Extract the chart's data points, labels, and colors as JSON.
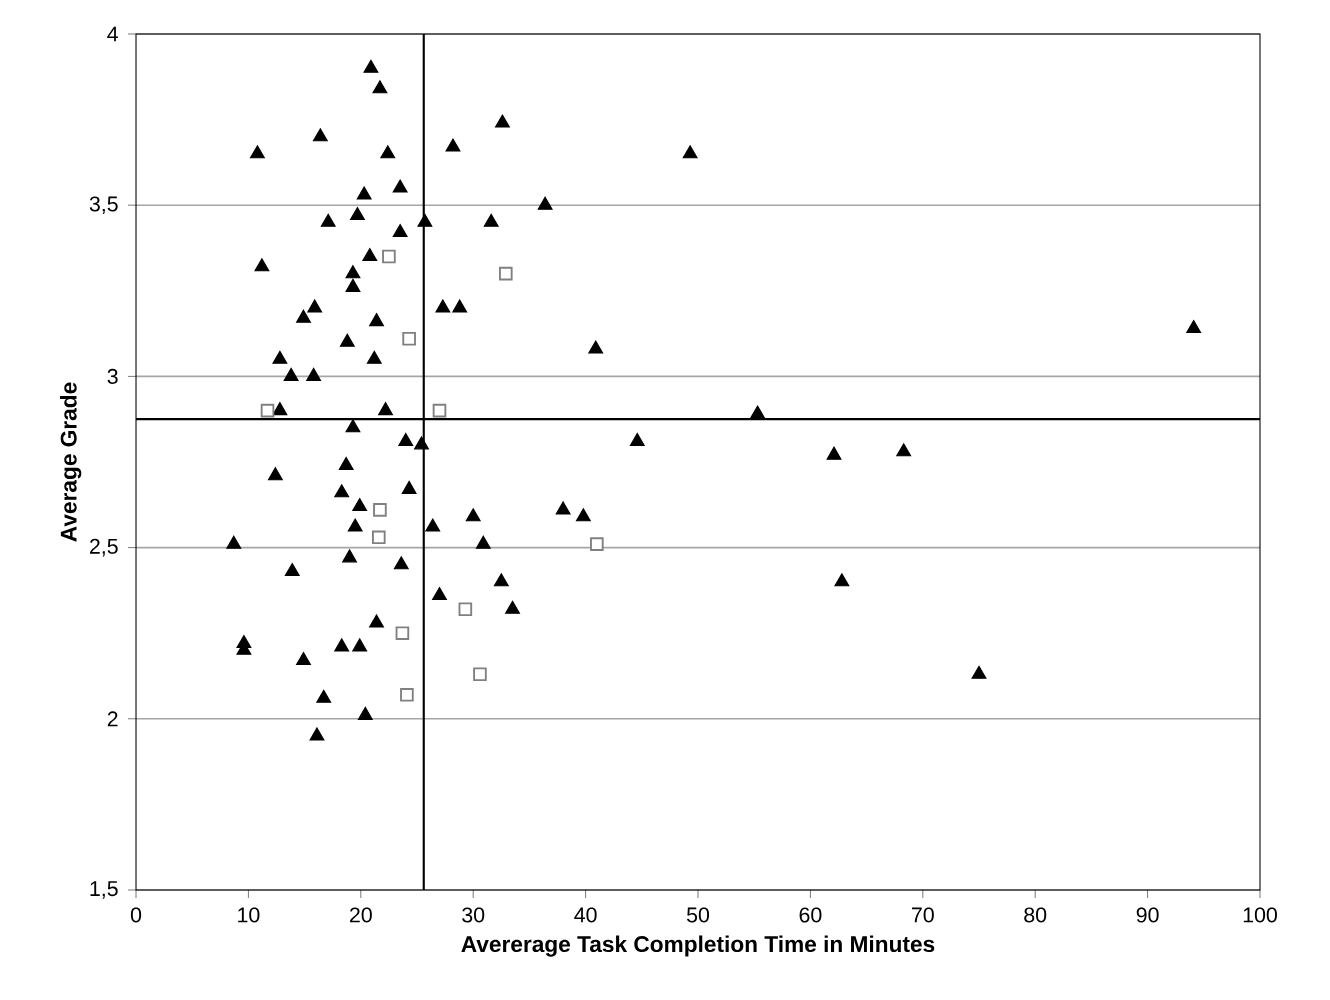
{
  "chart_data": {
    "type": "scatter",
    "xlabel": "Avererage Task Completion Time in Minutes",
    "ylabel": "Average Grade",
    "xlim": [
      0,
      100
    ],
    "xticks": [
      0,
      10,
      20,
      30,
      40,
      50,
      60,
      70,
      80,
      90,
      100
    ],
    "ylim": [
      1.5,
      4
    ],
    "yticks": [
      {
        "value": 1.5,
        "label": "1,5"
      },
      2,
      {
        "value": 2.5,
        "label": "2,5"
      },
      3,
      {
        "value": 3.5,
        "label": "3,5"
      },
      4
    ],
    "grid": "y",
    "ref_lines": [
      {
        "axis": "x",
        "value": 25.6,
        "color": "#000000"
      },
      {
        "axis": "y",
        "value": 2.875,
        "color": "#000000"
      }
    ],
    "series": [
      {
        "color": "#000000",
        "marker": "triangle",
        "x": [
          20.9,
          21.7,
          16.4,
          10.8,
          22.4,
          23.5,
          20.3,
          17.1,
          19.7,
          23.5,
          11.2,
          20.8,
          19.3,
          19.3,
          15.9,
          14.9,
          21.4,
          18.8,
          12.8,
          21.2,
          13.8,
          15.8,
          12.8,
          22.2,
          19.3,
          24.0,
          18.7,
          12.4,
          18.3,
          24.3,
          19.9,
          19.5,
          8.7,
          13.9,
          19.0,
          23.6,
          21.4,
          9.6,
          9.6,
          14.9,
          18.3,
          19.9,
          16.7,
          20.4,
          16.1,
          32.6,
          28.2,
          49.3,
          36.4,
          25.7,
          31.6,
          27.3,
          28.8,
          40.9,
          25.4,
          44.6,
          26.4,
          30.0,
          38.0,
          39.8,
          30.9,
          32.5,
          27.0,
          33.5,
          94.1,
          55.3,
          62.1,
          68.3,
          62.8,
          75.0
        ],
        "values": [
          3.9,
          3.84,
          3.7,
          3.65,
          3.65,
          3.55,
          3.53,
          3.45,
          3.47,
          3.42,
          3.32,
          3.35,
          3.3,
          3.26,
          3.2,
          3.17,
          3.16,
          3.1,
          3.05,
          3.05,
          3.0,
          3.0,
          2.9,
          2.9,
          2.85,
          2.81,
          2.74,
          2.71,
          2.66,
          2.67,
          2.62,
          2.56,
          2.51,
          2.43,
          2.47,
          2.45,
          2.28,
          2.22,
          2.2,
          2.17,
          2.21,
          2.21,
          2.06,
          2.01,
          1.95,
          3.74,
          3.67,
          3.65,
          3.5,
          3.45,
          3.45,
          3.2,
          3.2,
          3.08,
          2.8,
          2.81,
          2.56,
          2.59,
          2.61,
          2.59,
          2.51,
          2.4,
          2.36,
          2.32,
          3.14,
          2.89,
          2.77,
          2.78,
          2.4,
          2.13
        ]
      },
      {
        "color": "#808080",
        "marker": "square",
        "x": [
          22.5,
          32.9,
          24.3,
          11.7,
          27.0,
          21.7,
          21.6,
          41.0,
          29.3,
          23.7,
          30.6,
          24.1
        ],
        "values": [
          3.35,
          3.3,
          3.11,
          2.9,
          2.9,
          2.61,
          2.53,
          2.51,
          2.32,
          2.25,
          2.13,
          2.07
        ]
      }
    ]
  }
}
